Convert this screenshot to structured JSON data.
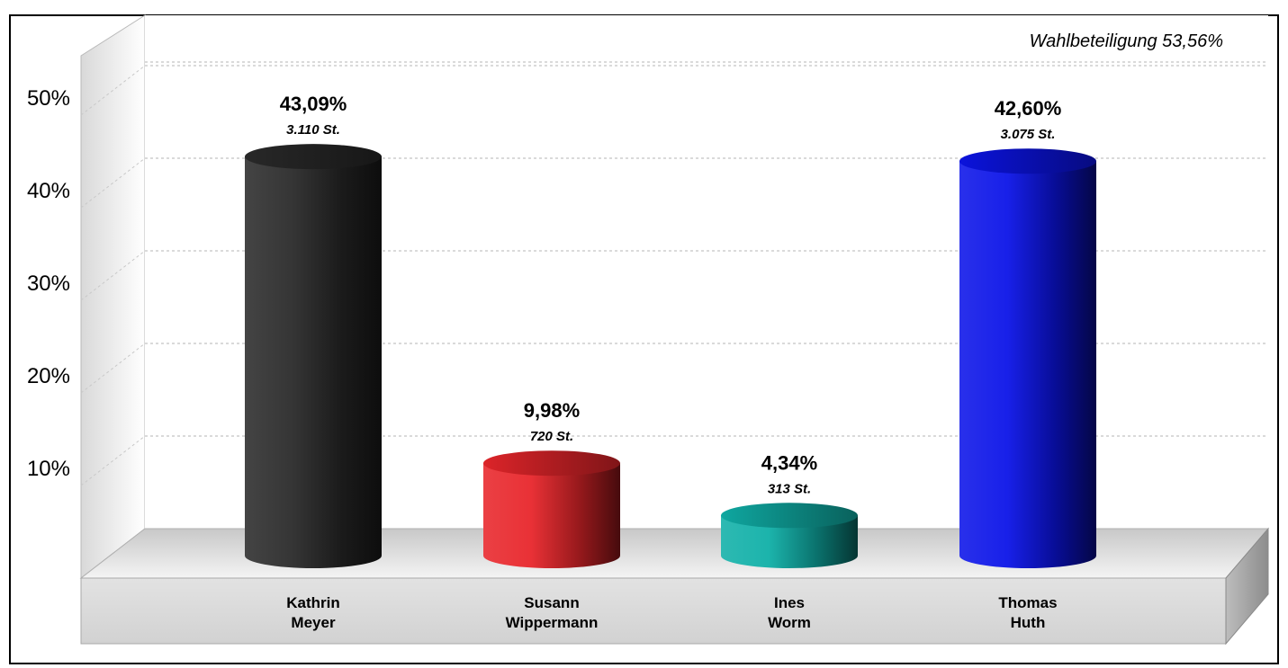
{
  "chart_data": {
    "type": "bar",
    "annotation": "Wahlbeteiligung 53,56%",
    "categories": [
      [
        "Kathrin",
        "Meyer"
      ],
      [
        "Susann",
        "Wippermann"
      ],
      [
        "Ines",
        "Worm"
      ],
      [
        "Thomas",
        "Huth"
      ]
    ],
    "values": [
      43.09,
      9.98,
      4.34,
      42.6
    ],
    "value_labels": [
      "43,09%",
      "9,98%",
      "4,34%",
      "42,60%"
    ],
    "votes_labels": [
      "3.110 St.",
      "720 St.",
      "313 St.",
      "3.075 St."
    ],
    "colors": [
      "#2a2a2a",
      "#e8262b",
      "#10b0a8",
      "#0c14e8"
    ],
    "yticks": [
      10,
      20,
      30,
      40,
      50
    ],
    "ytick_labels": [
      "10%",
      "20%",
      "30%",
      "40%",
      "50%"
    ],
    "ylim": [
      0,
      50
    ],
    "grid": true,
    "legend": "none"
  }
}
